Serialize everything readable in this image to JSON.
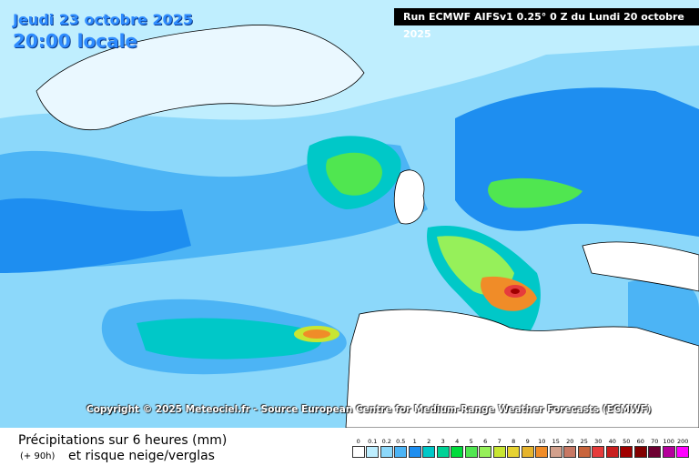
{
  "header": {
    "date": "Jeudi 23 octobre 2025",
    "time": "20:00 locale",
    "run": "Run ECMWF AIFSv1 0.25° 0 Z du Lundi 20 octobre 2025"
  },
  "copyright": "Copyright © 2025 Meteociel.fr - Source European Centre for Medium-Range Weather Forecasts (ECMWF)",
  "legend": {
    "title": "Précipitations sur 6 heures (mm)",
    "lead": "(+ 90h)",
    "subtitle": "et risque neige/verglas",
    "scale": [
      {
        "label": "0",
        "color": "#ffffff"
      },
      {
        "label": "0.1",
        "color": "#bdeeff"
      },
      {
        "label": "0.2",
        "color": "#8cd8fa"
      },
      {
        "label": "0.5",
        "color": "#4cb4f5"
      },
      {
        "label": "1",
        "color": "#1e8ef0"
      },
      {
        "label": "2",
        "color": "#00c8c8"
      },
      {
        "label": "3",
        "color": "#00d296"
      },
      {
        "label": "4",
        "color": "#00dc3c"
      },
      {
        "label": "5",
        "color": "#50e650"
      },
      {
        "label": "6",
        "color": "#96f05a"
      },
      {
        "label": "7",
        "color": "#c8e632"
      },
      {
        "label": "8",
        "color": "#e6d232"
      },
      {
        "label": "9",
        "color": "#e6b42d"
      },
      {
        "label": "10",
        "color": "#f08c28"
      },
      {
        "label": "15",
        "color": "#d2a08c"
      },
      {
        "label": "20",
        "color": "#c87864"
      },
      {
        "label": "25",
        "color": "#c8643c"
      },
      {
        "label": "30",
        "color": "#e63c3c"
      },
      {
        "label": "40",
        "color": "#c81e1e"
      },
      {
        "label": "50",
        "color": "#a00000"
      },
      {
        "label": "60",
        "color": "#820000"
      },
      {
        "label": "70",
        "color": "#6e0032"
      },
      {
        "label": "100",
        "color": "#b4009b"
      },
      {
        "label": "200",
        "color": "#ff00ff"
      }
    ]
  }
}
